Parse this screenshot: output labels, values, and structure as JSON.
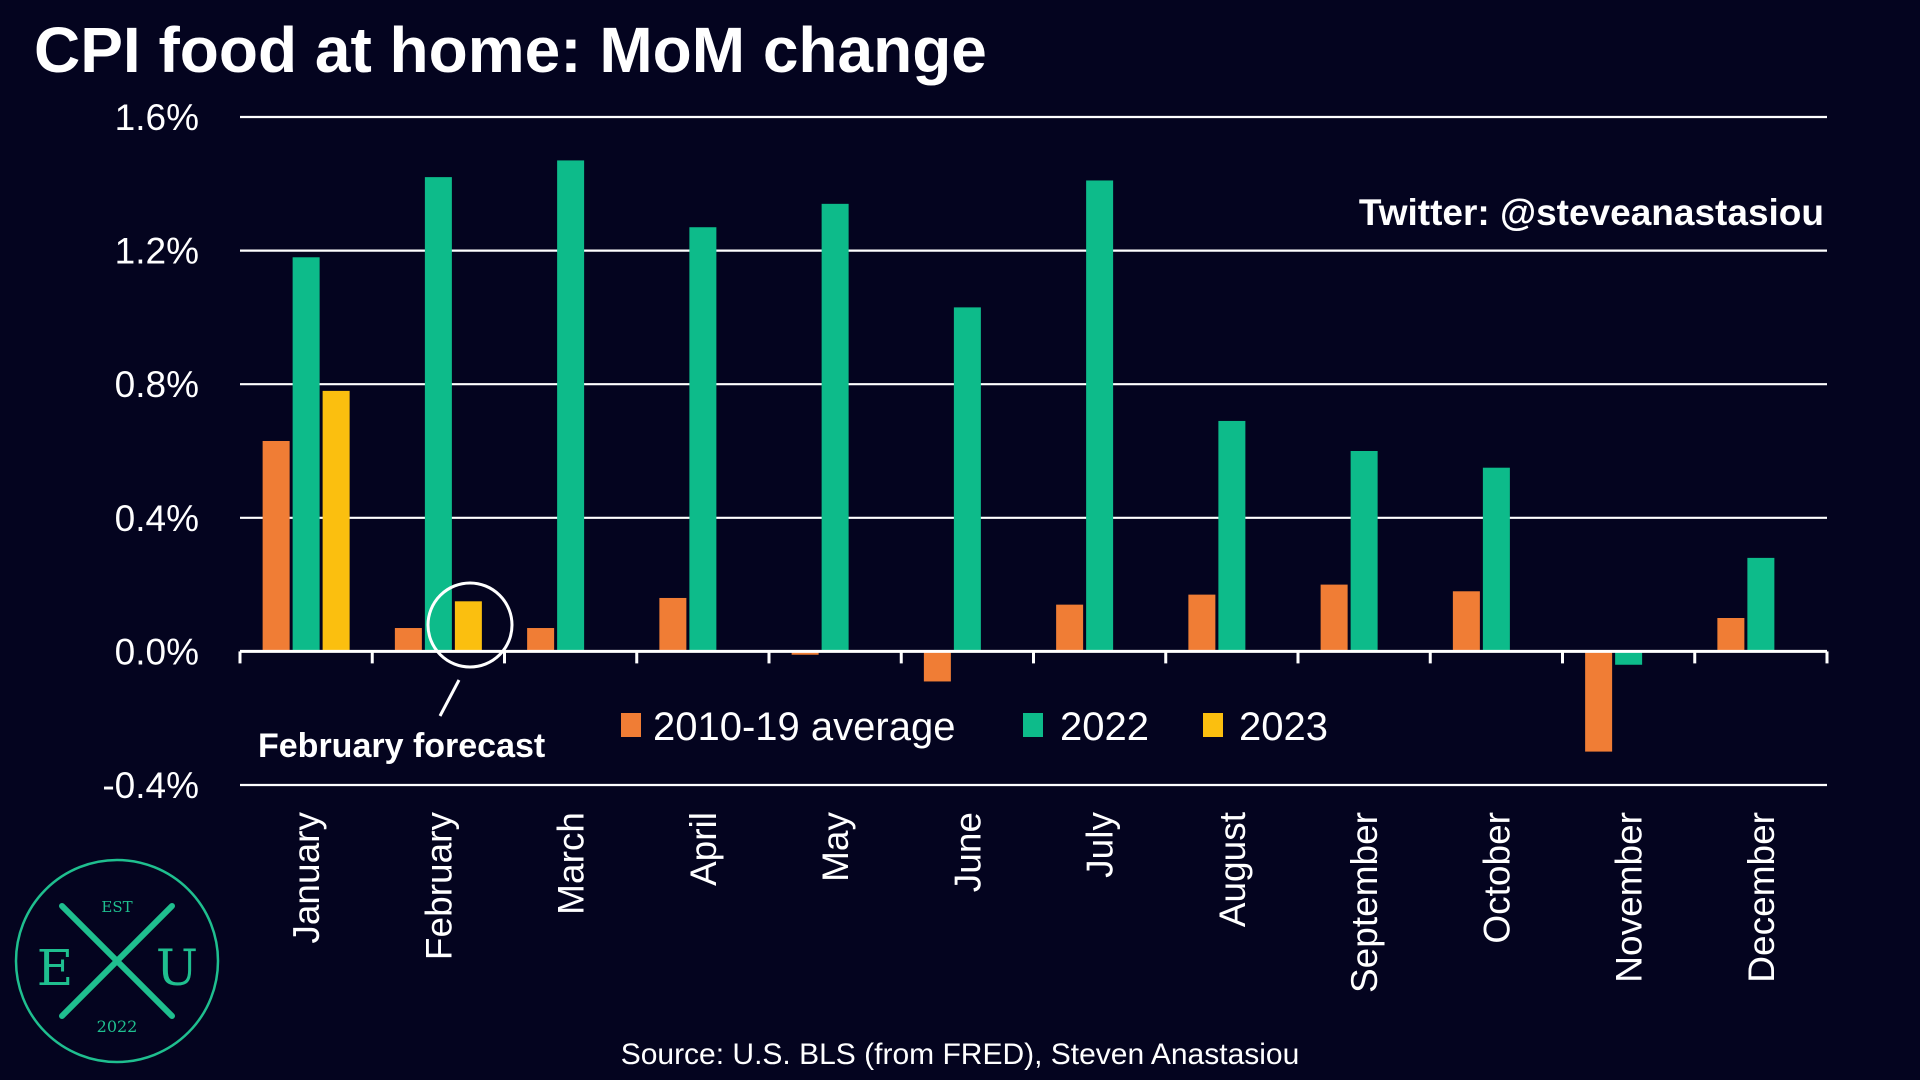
{
  "chart_data": {
    "type": "bar",
    "title": "CPI food at home: MoM change",
    "categories": [
      "January",
      "February",
      "March",
      "April",
      "May",
      "June",
      "July",
      "August",
      "September",
      "October",
      "November",
      "December"
    ],
    "series": [
      {
        "name": "2010-19 average",
        "color": "#f07d35",
        "values": [
          0.63,
          0.07,
          0.07,
          0.16,
          -0.01,
          -0.09,
          0.14,
          0.17,
          0.2,
          0.18,
          -0.3,
          0.1
        ]
      },
      {
        "name": "2022",
        "color": "#0dbb8a",
        "values": [
          1.18,
          1.42,
          1.47,
          1.27,
          1.34,
          1.03,
          1.41,
          0.69,
          0.6,
          0.55,
          -0.04,
          0.28
        ]
      },
      {
        "name": "2023",
        "color": "#fbbf0f",
        "values": [
          0.78,
          0.15,
          null,
          null,
          null,
          null,
          null,
          null,
          null,
          null,
          null,
          null
        ]
      }
    ],
    "ylim": [
      -0.4,
      1.6
    ],
    "yticks": [
      -0.4,
      0.0,
      0.4,
      0.8,
      1.2,
      1.6
    ],
    "ytick_labels": [
      "-0.4%",
      "0.0%",
      "0.4%",
      "0.8%",
      "1.2%",
      "1.6%"
    ],
    "xlabel": "",
    "ylabel": "",
    "grid": true,
    "legend": "center"
  },
  "credit": "Twitter: @steveanastasiou",
  "annotation": {
    "label": "February forecast",
    "category": "February",
    "series": "2023"
  },
  "source": "Source: U.S. BLS (from FRED), Steven Anastasiou",
  "logo": {
    "top": "EST",
    "left": "E",
    "center": "X",
    "right": "U",
    "bottom": "2022",
    "color": "#1fbf8f"
  }
}
